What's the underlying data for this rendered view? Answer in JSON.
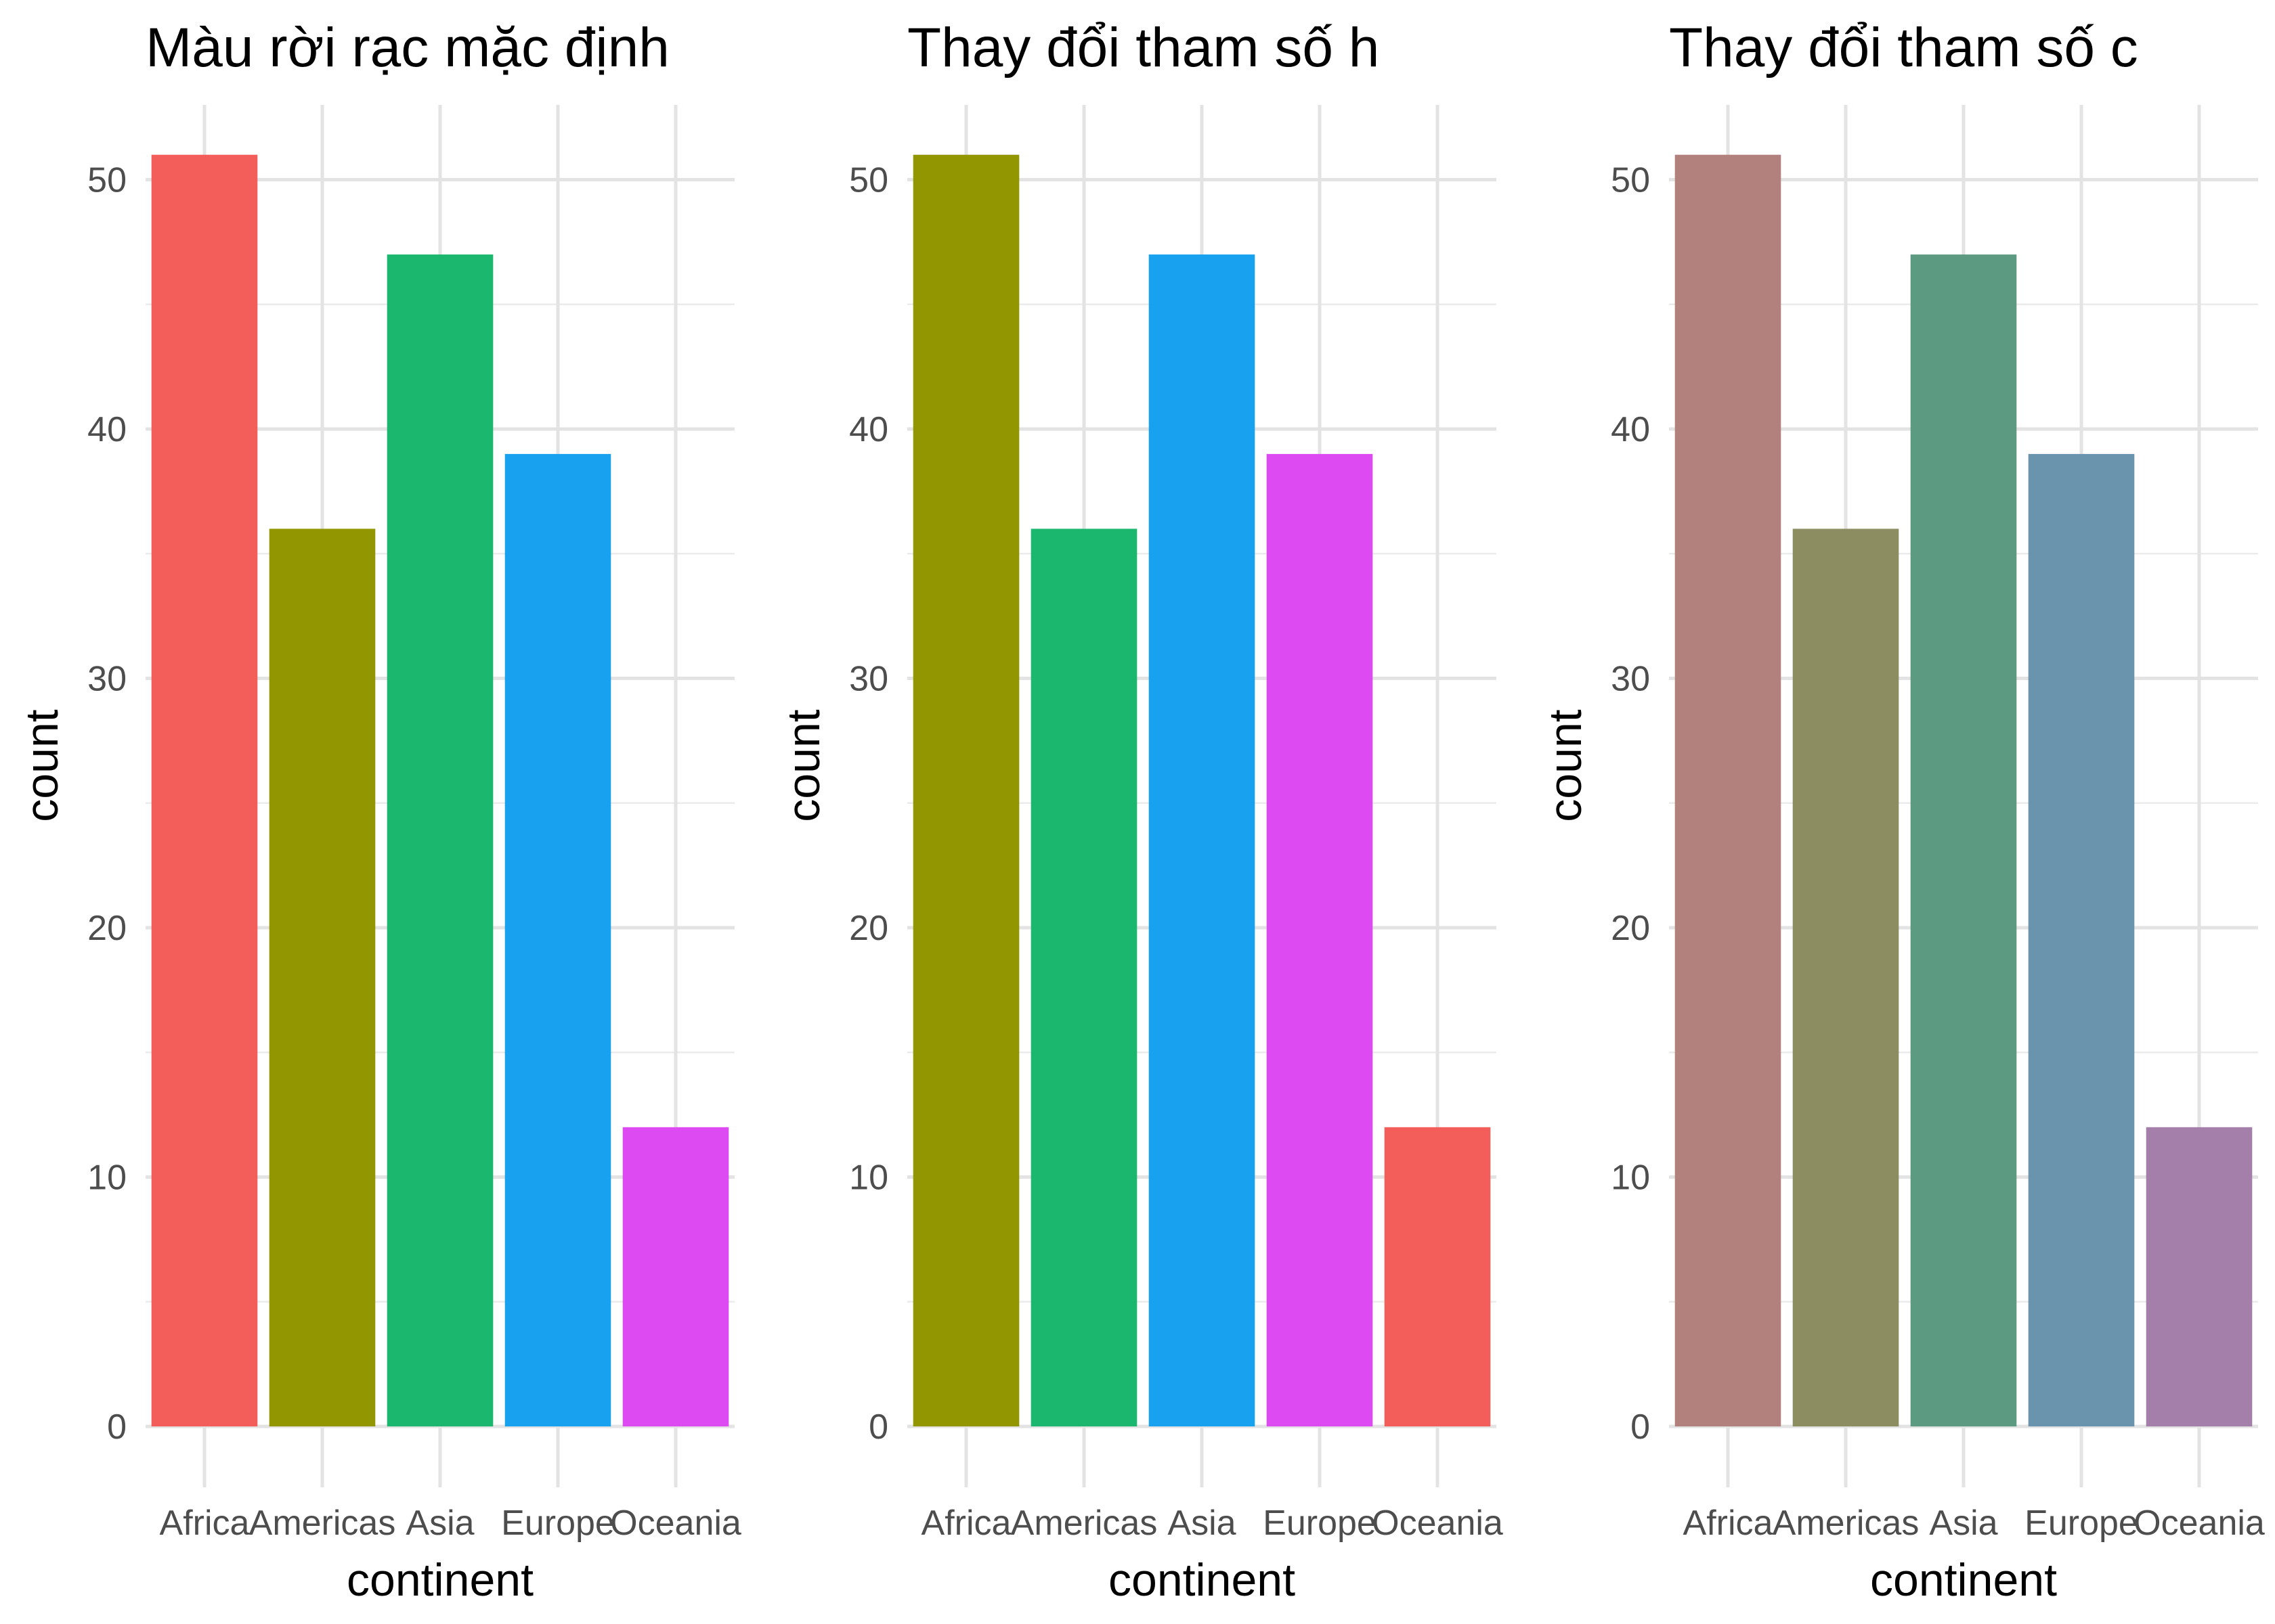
{
  "chart_data": [
    {
      "type": "bar",
      "title": "Màu rời rạc mặc định",
      "xlabel": "continent",
      "ylabel": "count",
      "categories": [
        "Africa",
        "Americas",
        "Asia",
        "Europe",
        "Oceania"
      ],
      "values": [
        51,
        36,
        47,
        39,
        12
      ],
      "colors": [
        "#F35E5A",
        "#929600",
        "#1BB76E",
        "#17A1EF",
        "#DD4AF1"
      ],
      "ylim": [
        0,
        53
      ],
      "yticks": [
        0,
        10,
        20,
        30,
        40,
        50
      ],
      "grid": true,
      "legend": "none"
    },
    {
      "type": "bar",
      "title": "Thay đổi tham số h",
      "xlabel": "continent",
      "ylabel": "count",
      "categories": [
        "Africa",
        "Americas",
        "Asia",
        "Europe",
        "Oceania"
      ],
      "values": [
        51,
        36,
        47,
        39,
        12
      ],
      "colors": [
        "#929600",
        "#1BB76E",
        "#17A1EF",
        "#DD4AF1",
        "#F35E5A"
      ],
      "ylim": [
        0,
        53
      ],
      "yticks": [
        0,
        10,
        20,
        30,
        40,
        50
      ],
      "grid": true,
      "legend": "none"
    },
    {
      "type": "bar",
      "title": "Thay đổi tham số c",
      "xlabel": "continent",
      "ylabel": "count",
      "categories": [
        "Africa",
        "Americas",
        "Asia",
        "Europe",
        "Oceania"
      ],
      "values": [
        51,
        36,
        47,
        39,
        12
      ],
      "colors": [
        "#B2817D",
        "#8D8D62",
        "#5C9A82",
        "#6A93AE",
        "#A47FAA"
      ],
      "ylim": [
        0,
        53
      ],
      "yticks": [
        0,
        10,
        20,
        30,
        40,
        50
      ],
      "grid": true,
      "legend": "none"
    }
  ]
}
